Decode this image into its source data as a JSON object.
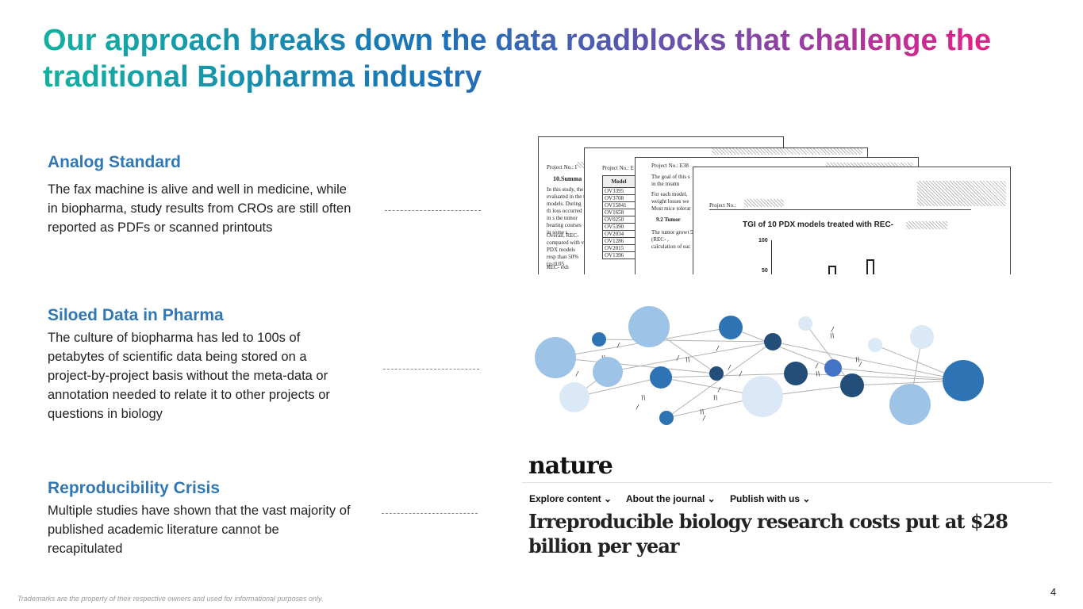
{
  "title": "Our approach breaks down the data roadblocks that challenge the traditional Biopharma industry",
  "sections": [
    {
      "heading": "Analog Standard",
      "body": "The fax machine is alive and well in medicine, while in biopharma, study results from CROs are still often reported as PDFs or scanned printouts"
    },
    {
      "heading": "Siloed Data in Pharma",
      "body": "The culture of biopharma has led to 100s of petabytes of scientific data being stored on a project-by-project basis without the meta-data or annotation needed to relate it to other projects or questions in biology"
    },
    {
      "heading": "Reproducibility Crisis",
      "body": "Multiple studies have shown that the vast majority of published academic literature cannot be recapitulated"
    }
  ],
  "docs": {
    "project_label": "Project No.:",
    "doc1_project": "Project No.: I",
    "doc1_heading": "10.Summa",
    "doc1_text": "In this study, the evaluated in the t models. During th loss occurred in s the tumor bearing courses in some s",
    "doc1_text2": "Overall, REC- compared with v PDX models resp than 50% (p<0.05",
    "doc1_text3": "REC- exh",
    "doc2_project": "Project No.: E",
    "doc2_col": "Model",
    "doc2_models": [
      "OV3395",
      "OV3708",
      "OV15841",
      "OV1658",
      "OV0250",
      "OV5390",
      "OV2034",
      "OV1286",
      "OV2015",
      "OV1396"
    ],
    "doc3_project": "Project No.: E38",
    "doc3_text": "The goal of this s in the treatm",
    "doc3_text2": "For each model, weight losses we Most mice tolerat",
    "doc3_heading": "9.2 Tumor",
    "doc3_text3": "The tumor growt 5 (REC- , calculation of eac",
    "doc4_chart_title": "TGI of 10 PDX models treated with REC-",
    "doc4_tick_100": "100",
    "doc4_tick_50": "50"
  },
  "nature": {
    "logo": "nature",
    "nav": [
      "Explore content",
      "About the journal",
      "Publish with us"
    ],
    "headline": "Irreproducible biology research costs put at $28 billion per year"
  },
  "footer": "Trademarks are the property of their respective owners and used for informational purposes only.",
  "page_number": "4",
  "colors": {
    "heading_blue": "#3177b4",
    "title_teal": "#13b1a0",
    "title_magenta": "#e0228a",
    "node_dark": "#234e79",
    "node_mid": "#2e74b5",
    "node_light": "#9dc3e6",
    "node_pale": "#dbe8f5"
  }
}
